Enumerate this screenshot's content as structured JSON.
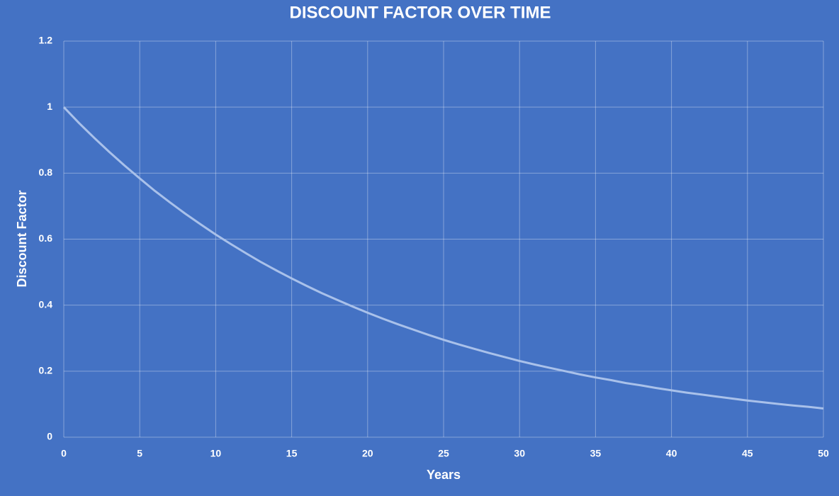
{
  "chart_data": {
    "type": "line",
    "title": "DISCOUNT FACTOR OVER TIME",
    "x_label": "Years",
    "y_label": "Discount Factor",
    "x": [
      0,
      1,
      2,
      3,
      4,
      5,
      6,
      7,
      8,
      9,
      10,
      11,
      12,
      13,
      14,
      15,
      16,
      17,
      18,
      19,
      20,
      21,
      22,
      23,
      24,
      25,
      26,
      27,
      28,
      29,
      30,
      31,
      32,
      33,
      34,
      35,
      36,
      37,
      38,
      39,
      40,
      41,
      42,
      43,
      44,
      45,
      46,
      47,
      48,
      49,
      50
    ],
    "values": [
      1,
      0.952,
      0.907,
      0.864,
      0.823,
      0.784,
      0.746,
      0.711,
      0.677,
      0.645,
      0.614,
      0.585,
      0.557,
      0.53,
      0.505,
      0.481,
      0.458,
      0.436,
      0.416,
      0.396,
      0.377,
      0.359,
      0.342,
      0.326,
      0.31,
      0.295,
      0.281,
      0.268,
      0.255,
      0.243,
      0.231,
      0.22,
      0.21,
      0.2,
      0.19,
      0.181,
      0.173,
      0.164,
      0.157,
      0.149,
      0.142,
      0.135,
      0.129,
      0.123,
      0.117,
      0.111,
      0.106,
      0.101,
      0.096,
      0.092,
      0.087
    ],
    "color": "#a9c1ea",
    "xlim": [
      0,
      50
    ],
    "xticks": [
      0,
      5,
      10,
      15,
      20,
      25,
      30,
      35,
      40,
      45,
      50
    ],
    "ylim": [
      0,
      1.2
    ],
    "yticks": [
      0,
      0.2,
      0.4,
      0.6,
      0.8,
      1,
      1.2
    ],
    "grid": true
  }
}
